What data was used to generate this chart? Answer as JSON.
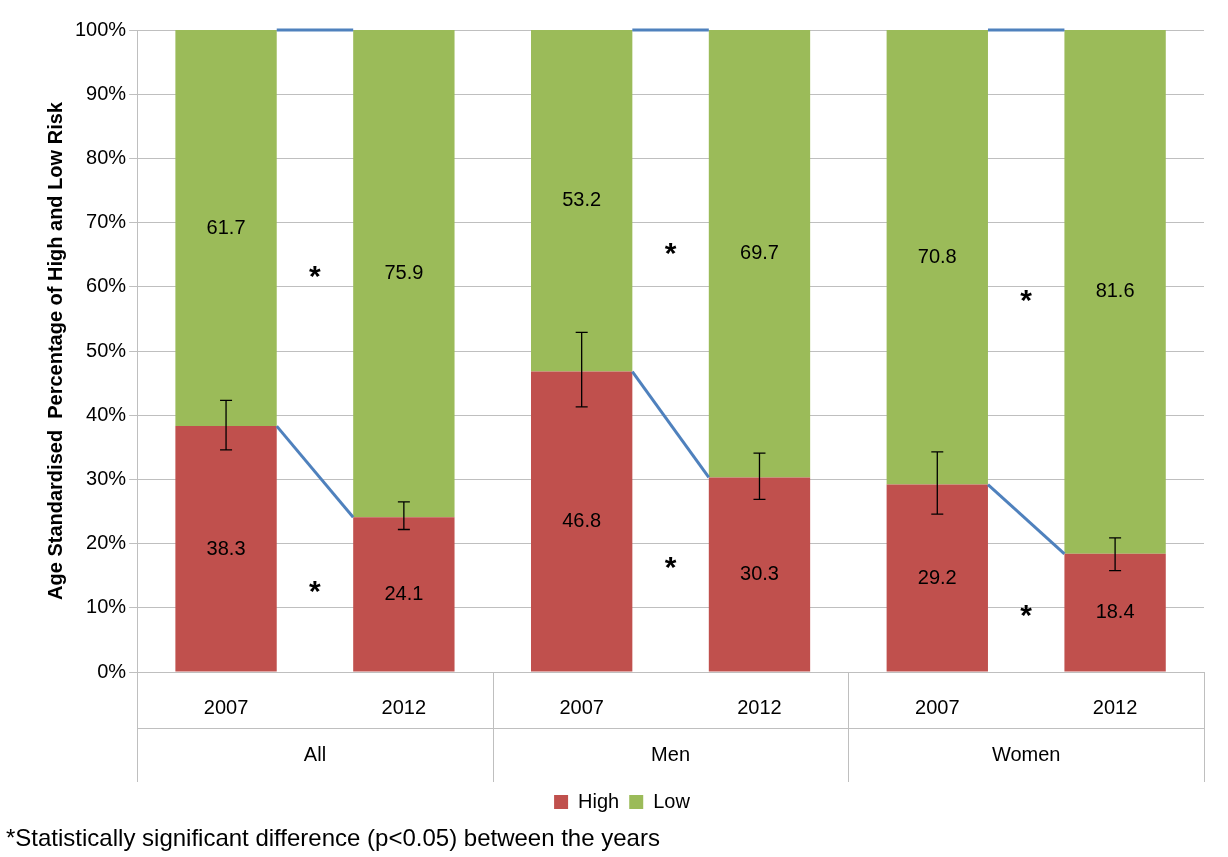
{
  "chart_data": {
    "type": "bar",
    "stacked": true,
    "ylabel": "Age Standardised  Percentage of High and Low Risk",
    "categories": [
      "2007",
      "2012",
      "2007",
      "2012",
      "2007",
      "2012"
    ],
    "series": [
      {
        "name": "High",
        "color": "#c0504d",
        "values": [
          38.3,
          24.1,
          46.8,
          30.3,
          29.2,
          18.4
        ],
        "errors": [
          [
            34.6,
            42.3
          ],
          [
            22.2,
            26.5
          ],
          [
            41.3,
            52.9
          ],
          [
            26.9,
            34.1
          ],
          [
            24.6,
            34.3
          ],
          [
            15.8,
            20.9
          ]
        ]
      },
      {
        "name": "Low",
        "color": "#9bbb59",
        "values": [
          61.7,
          75.9,
          53.2,
          69.7,
          70.8,
          81.6
        ]
      }
    ],
    "ylim": [
      0,
      100
    ],
    "yticks": [
      {
        "value": 0,
        "label": "0%"
      },
      {
        "value": 10,
        "label": "10%"
      },
      {
        "value": 20,
        "label": "20%"
      },
      {
        "value": 30,
        "label": "30%"
      },
      {
        "value": 40,
        "label": "40%"
      },
      {
        "value": 50,
        "label": "50%"
      },
      {
        "value": 60,
        "label": "60%"
      },
      {
        "value": 70,
        "label": "70%"
      },
      {
        "value": 80,
        "label": "80%"
      },
      {
        "value": 90,
        "label": "90%"
      },
      {
        "value": 100,
        "label": "100%"
      }
    ],
    "grid": "y",
    "legend": "bottom",
    "data_labels": true,
    "annotations": [
      "*",
      "*",
      "*",
      "*",
      "*",
      "*",
      "All",
      "Men",
      "Women",
      "*Statistically significant difference (p<0.05) between the years"
    ]
  }
}
